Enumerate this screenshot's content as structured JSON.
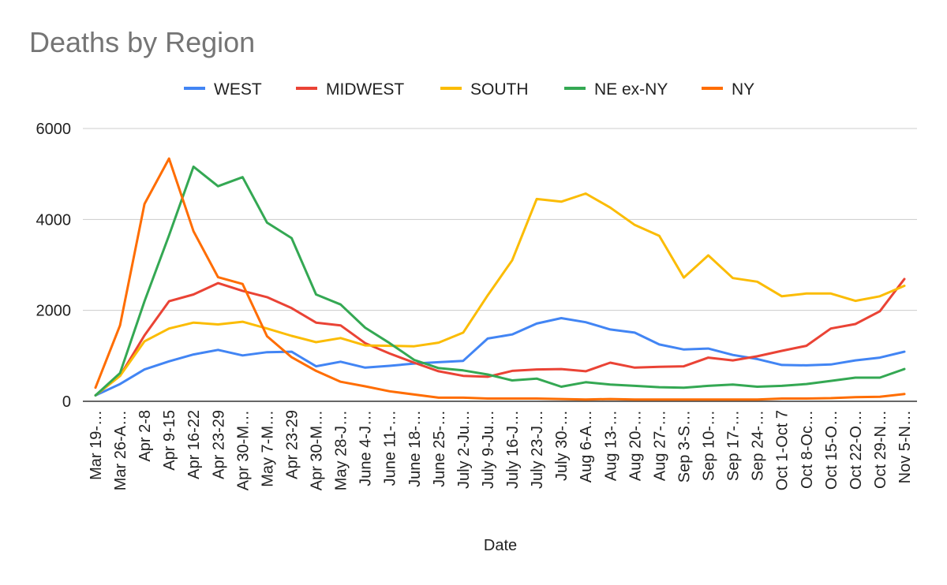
{
  "chart_data": {
    "type": "line",
    "title": "Deaths by Region",
    "xlabel": "Date",
    "ylabel": "",
    "ylim": [
      0,
      6000
    ],
    "yticks": [
      "0",
      "2000",
      "4000",
      "6000"
    ],
    "legend_position": "top",
    "grid": true,
    "categories": [
      "Mar 19-…",
      "Mar 26-A…",
      "Apr 2-8",
      "Apr 9-15",
      "Apr 16-22",
      "Apr 23-29",
      "Apr 30-M…",
      "May 7-M…",
      "Apr 23-29",
      "Apr 30-M…",
      "May 28-J…",
      "June 4-J…",
      "June 11-…",
      "June 18-…",
      "June 25-…",
      "July 2-Ju…",
      "July 9-Ju…",
      "July 16-J…",
      "July 23-J…",
      "July 30-…",
      "Aug 6-A…",
      "Aug 13-…",
      "Aug 20-…",
      "Aug 27-…",
      "Sep 3-S…",
      "Sep 10-…",
      "Sep 17-…",
      "Sep 24-…",
      "Oct 1-Oct 7",
      "Oct 8-Oc…",
      "Oct 15-O…",
      "Oct 22-O…",
      "Oct 29-N…",
      "Nov 5-N…"
    ],
    "series": [
      {
        "name": "WEST",
        "color": "#4285f4",
        "values": [
          130,
          380,
          700,
          880,
          1030,
          1130,
          1010,
          1080,
          1090,
          770,
          870,
          740,
          780,
          830,
          860,
          890,
          1380,
          1470,
          1710,
          1830,
          1740,
          1580,
          1510,
          1250,
          1140,
          1160,
          1020,
          930,
          800,
          790,
          810,
          900,
          960,
          1090
        ]
      },
      {
        "name": "MIDWEST",
        "color": "#ea4335",
        "values": [
          130,
          560,
          1450,
          2200,
          2350,
          2600,
          2430,
          2290,
          2050,
          1730,
          1670,
          1280,
          1050,
          850,
          660,
          560,
          540,
          670,
          700,
          710,
          660,
          850,
          740,
          760,
          770,
          960,
          900,
          990,
          1110,
          1220,
          1600,
          1700,
          1980,
          2690
        ]
      },
      {
        "name": "SOUTH",
        "color": "#fbbc04",
        "values": [
          130,
          560,
          1320,
          1600,
          1730,
          1690,
          1750,
          1600,
          1440,
          1300,
          1390,
          1230,
          1220,
          1210,
          1290,
          1510,
          2330,
          3100,
          4450,
          4390,
          4570,
          4260,
          3880,
          3640,
          2720,
          3210,
          2710,
          2630,
          2310,
          2370,
          2370,
          2210,
          2310,
          2540
        ]
      },
      {
        "name": "NE ex-NY",
        "color": "#34a853",
        "values": [
          130,
          620,
          2200,
          3650,
          5160,
          4730,
          4930,
          3930,
          3590,
          2350,
          2130,
          1620,
          1280,
          910,
          730,
          680,
          590,
          460,
          500,
          320,
          420,
          370,
          340,
          310,
          300,
          340,
          370,
          320,
          340,
          380,
          450,
          520,
          520,
          710
        ]
      },
      {
        "name": "NY",
        "color": "#ff6d01",
        "values": [
          300,
          1670,
          4340,
          5340,
          3740,
          2730,
          2580,
          1430,
          970,
          670,
          430,
          330,
          220,
          150,
          80,
          80,
          60,
          60,
          60,
          50,
          40,
          50,
          40,
          40,
          40,
          40,
          40,
          40,
          60,
          60,
          70,
          90,
          100,
          160
        ]
      }
    ]
  }
}
